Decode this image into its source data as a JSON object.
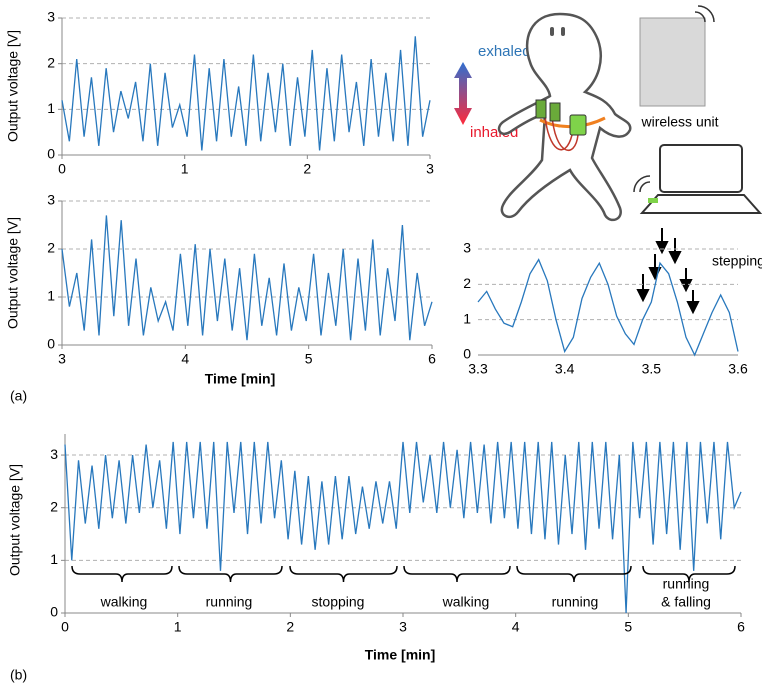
{
  "figure": {
    "panel_a": "(a)",
    "panel_b": "(b)",
    "exhaled": "exhaled",
    "inhaled": "inhaled",
    "wireless_unit": "wireless unit"
  },
  "chart_data": [
    {
      "type": "line",
      "y_label": "Output voltage [V]",
      "color": "#2878bd",
      "grid": true,
      "xlim": [
        0,
        3
      ],
      "xticks": [
        0,
        1,
        2,
        3
      ],
      "ylim": [
        0,
        3
      ],
      "yticks": [
        0,
        1,
        2,
        3
      ],
      "x": [
        0,
        0.06,
        0.12,
        0.18,
        0.24,
        0.3,
        0.36,
        0.42,
        0.48,
        0.54,
        0.6,
        0.66,
        0.72,
        0.78,
        0.84,
        0.9,
        0.96,
        1.02,
        1.08,
        1.14,
        1.2,
        1.26,
        1.32,
        1.38,
        1.44,
        1.5,
        1.56,
        1.62,
        1.68,
        1.74,
        1.8,
        1.86,
        1.92,
        1.98,
        2.04,
        2.1,
        2.16,
        2.22,
        2.28,
        2.34,
        2.4,
        2.46,
        2.52,
        2.58,
        2.64,
        2.7,
        2.76,
        2.82,
        2.88,
        2.94,
        3.0
      ],
      "values": [
        1.2,
        0.3,
        2.1,
        0.4,
        1.7,
        0.2,
        1.9,
        0.5,
        1.4,
        0.8,
        1.6,
        0.3,
        2.0,
        0.2,
        1.8,
        0.6,
        1.1,
        0.4,
        2.2,
        0.1,
        1.9,
        0.3,
        2.1,
        0.4,
        1.5,
        0.2,
        2.2,
        0.3,
        1.8,
        0.5,
        2.0,
        0.2,
        1.7,
        0.4,
        2.3,
        0.1,
        1.9,
        0.3,
        2.2,
        0.5,
        1.6,
        0.2,
        2.1,
        0.4,
        1.8,
        0.3,
        2.3,
        0.2,
        2.6,
        0.4,
        1.2
      ]
    },
    {
      "type": "line",
      "y_label": "Output voltage [V]",
      "x_label": "Time [min]",
      "color": "#2878bd",
      "grid": true,
      "xlim": [
        3,
        6
      ],
      "xticks": [
        3,
        4,
        5,
        6
      ],
      "ylim": [
        0,
        3
      ],
      "yticks": [
        0,
        1,
        2,
        3
      ],
      "x": [
        3,
        3.06,
        3.12,
        3.18,
        3.24,
        3.3,
        3.36,
        3.42,
        3.48,
        3.54,
        3.6,
        3.66,
        3.72,
        3.78,
        3.84,
        3.9,
        3.96,
        4.02,
        4.08,
        4.14,
        4.2,
        4.26,
        4.32,
        4.38,
        4.44,
        4.5,
        4.56,
        4.62,
        4.68,
        4.74,
        4.8,
        4.86,
        4.92,
        4.98,
        5.04,
        5.1,
        5.16,
        5.22,
        5.28,
        5.34,
        5.4,
        5.46,
        5.52,
        5.58,
        5.64,
        5.7,
        5.76,
        5.82,
        5.88,
        5.94,
        6.0
      ],
      "values": [
        2.0,
        0.8,
        1.5,
        0.3,
        2.2,
        0.2,
        2.7,
        0.6,
        2.6,
        0.4,
        1.8,
        0.2,
        1.2,
        0.5,
        0.9,
        0.3,
        1.9,
        0.4,
        2.1,
        0.2,
        2.0,
        0.5,
        1.8,
        0.3,
        1.6,
        0.1,
        1.9,
        0.4,
        1.4,
        0.2,
        1.7,
        0.3,
        1.2,
        0.5,
        1.9,
        0.2,
        1.5,
        0.4,
        2.0,
        0.1,
        1.8,
        0.3,
        2.2,
        0.2,
        1.6,
        0.5,
        2.5,
        0.1,
        1.5,
        0.4,
        0.9
      ]
    },
    {
      "type": "line",
      "annotation": "stepping",
      "color": "#2878bd",
      "grid": true,
      "xlim": [
        3.3,
        3.6
      ],
      "xticks": [
        3.3,
        3.4,
        3.5,
        3.6
      ],
      "ylim": [
        0,
        3
      ],
      "yticks": [
        0,
        1,
        2,
        3
      ],
      "x": [
        3.3,
        3.31,
        3.32,
        3.33,
        3.34,
        3.35,
        3.36,
        3.37,
        3.38,
        3.39,
        3.4,
        3.41,
        3.42,
        3.43,
        3.44,
        3.45,
        3.46,
        3.47,
        3.48,
        3.49,
        3.5,
        3.51,
        3.52,
        3.53,
        3.54,
        3.55,
        3.56,
        3.57,
        3.58,
        3.59,
        3.6
      ],
      "values": [
        1.5,
        1.8,
        1.3,
        0.9,
        0.8,
        1.5,
        2.3,
        2.7,
        2.1,
        1.0,
        0.1,
        0.5,
        1.6,
        2.2,
        2.6,
        2.0,
        1.1,
        0.6,
        0.3,
        1.0,
        1.5,
        2.6,
        2.3,
        1.5,
        0.5,
        0.0,
        0.6,
        1.2,
        1.7,
        1.2,
        0.1
      ]
    },
    {
      "type": "line",
      "y_label": "Output voltage [V]",
      "x_label": "Time [min]",
      "color": "#2878bd",
      "grid": true,
      "annotations": [
        "walking",
        "running",
        "stopping",
        "walking",
        "running",
        "running",
        "& falling"
      ],
      "xlim": [
        0,
        6
      ],
      "xticks": [
        0,
        1,
        2,
        3,
        4,
        5,
        6
      ],
      "ylim": [
        0,
        3.4
      ],
      "yticks": [
        0,
        1,
        2,
        3
      ],
      "x": [
        0,
        0.06,
        0.12,
        0.18,
        0.24,
        0.3,
        0.36,
        0.42,
        0.48,
        0.54,
        0.6,
        0.66,
        0.72,
        0.78,
        0.84,
        0.9,
        0.96,
        1.02,
        1.08,
        1.14,
        1.2,
        1.26,
        1.32,
        1.38,
        1.44,
        1.5,
        1.56,
        1.62,
        1.68,
        1.74,
        1.8,
        1.86,
        1.92,
        1.98,
        2.04,
        2.1,
        2.16,
        2.22,
        2.28,
        2.34,
        2.4,
        2.46,
        2.52,
        2.58,
        2.64,
        2.7,
        2.76,
        2.82,
        2.88,
        2.94,
        3.0,
        3.06,
        3.12,
        3.18,
        3.24,
        3.3,
        3.36,
        3.42,
        3.48,
        3.54,
        3.6,
        3.66,
        3.72,
        3.78,
        3.84,
        3.9,
        3.96,
        4.02,
        4.08,
        4.14,
        4.2,
        4.26,
        4.32,
        4.38,
        4.44,
        4.5,
        4.56,
        4.62,
        4.68,
        4.74,
        4.8,
        4.86,
        4.92,
        4.98,
        5.04,
        5.1,
        5.16,
        5.22,
        5.28,
        5.34,
        5.4,
        5.46,
        5.52,
        5.58,
        5.64,
        5.7,
        5.76,
        5.82,
        5.88,
        5.94,
        6.0
      ],
      "values": [
        3.2,
        1.0,
        2.9,
        1.7,
        2.8,
        1.6,
        3.0,
        1.8,
        2.9,
        1.7,
        3.0,
        1.9,
        3.2,
        2.0,
        2.9,
        1.6,
        3.25,
        1.5,
        3.25,
        1.8,
        3.25,
        1.6,
        3.25,
        0.8,
        3.25,
        1.9,
        3.25,
        1.5,
        3.25,
        1.7,
        3.25,
        1.8,
        2.9,
        1.4,
        2.7,
        1.3,
        2.6,
        1.2,
        2.5,
        1.3,
        2.6,
        1.4,
        2.6,
        1.5,
        2.4,
        1.6,
        2.5,
        1.7,
        2.5,
        1.6,
        3.25,
        1.9,
        3.25,
        2.1,
        3.0,
        1.9,
        3.25,
        2.0,
        3.1,
        1.8,
        3.25,
        1.9,
        3.2,
        1.7,
        3.25,
        1.8,
        3.25,
        1.6,
        3.25,
        1.5,
        3.25,
        1.4,
        3.25,
        1.3,
        3.0,
        1.5,
        3.25,
        1.2,
        3.25,
        1.6,
        3.25,
        1.4,
        3.0,
        0.0,
        3.25,
        1.8,
        3.25,
        1.3,
        3.25,
        1.5,
        3.25,
        1.2,
        3.25,
        0.8,
        3.25,
        1.7,
        3.25,
        1.4,
        3.25,
        2.0,
        2.3
      ]
    }
  ]
}
